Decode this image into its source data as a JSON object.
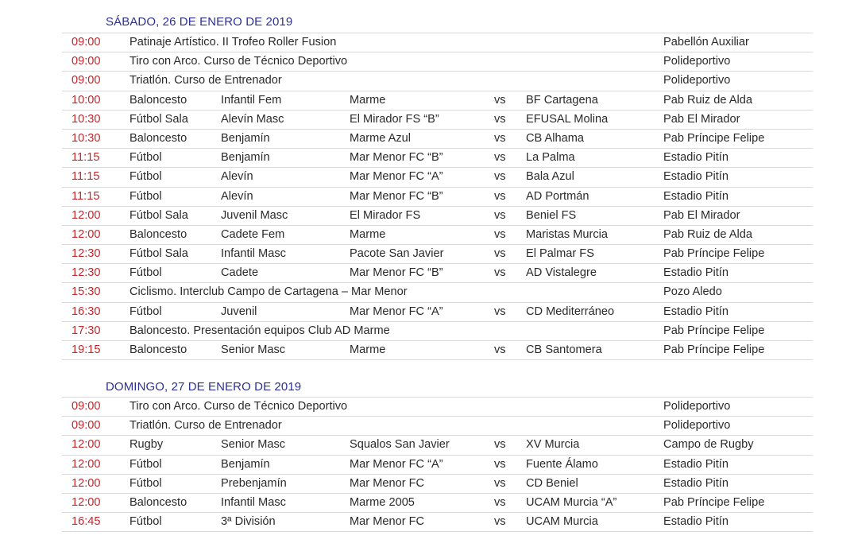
{
  "colors": {
    "title": "#2e3192",
    "time": "#c0282d"
  },
  "days": [
    {
      "title": "SÁBADO, 26 DE ENERO DE 2019",
      "events": [
        {
          "time": "09:00",
          "desc": "Patinaje Artístico. II Trofeo Roller Fusion",
          "venue": "Pabellón Auxiliar"
        },
        {
          "time": "09:00",
          "desc": "Tiro con Arco. Curso de Técnico Deportivo",
          "venue": "Polideportivo"
        },
        {
          "time": "09:00",
          "desc": "Triatlón. Curso de Entrenador",
          "venue": "Polideportivo"
        },
        {
          "time": "10:00",
          "sport": "Baloncesto",
          "category": "Infantil Fem",
          "team": "Marme",
          "vs": "vs",
          "opponent": "BF Cartagena",
          "venue": "Pab Ruiz de Alda"
        },
        {
          "time": "10:30",
          "sport": "Fútbol Sala",
          "category": "Alevín Masc",
          "team": "El Mirador FS “B”",
          "vs": "vs",
          "opponent": "EFUSAL Molina",
          "venue": "Pab El Mirador"
        },
        {
          "time": "10:30",
          "sport": "Baloncesto",
          "category": "Benjamín",
          "team": "Marme Azul",
          "vs": "vs",
          "opponent": "CB Alhama",
          "venue": "Pab Príncipe Felipe"
        },
        {
          "time": "11:15",
          "sport": "Fútbol",
          "category": "Benjamín",
          "team": "Mar Menor FC “B”",
          "vs": "vs",
          "opponent": "La Palma",
          "venue": "Estadio Pitín"
        },
        {
          "time": "11:15",
          "sport": "Fútbol",
          "category": "Alevín",
          "team": "Mar Menor FC “A”",
          "vs": "vs",
          "opponent": "Bala Azul",
          "venue": "Estadio Pitín"
        },
        {
          "time": "11:15",
          "sport": "Fútbol",
          "category": "Alevín",
          "team": "Mar Menor FC “B”",
          "vs": "vs",
          "opponent": "AD Portmán",
          "venue": "Estadio Pitín"
        },
        {
          "time": "12:00",
          "sport": "Fútbol Sala",
          "category": "Juvenil Masc",
          "team": "El Mirador FS",
          "vs": "vs",
          "opponent": "Beniel FS",
          "venue": "Pab El Mirador"
        },
        {
          "time": "12:00",
          "sport": "Baloncesto",
          "category": "Cadete Fem",
          "team": "Marme",
          "vs": "vs",
          "opponent": "Maristas Murcia",
          "venue": "Pab Ruiz de Alda"
        },
        {
          "time": "12:30",
          "sport": "Fútbol Sala",
          "category": "Infantil Masc",
          "team": "Pacote San Javier",
          "vs": "vs",
          "opponent": "El Palmar FS",
          "venue": "Pab Príncipe Felipe"
        },
        {
          "time": "12:30",
          "sport": "Fútbol",
          "category": "Cadete",
          "team": "Mar Menor FC “B”",
          "vs": "vs",
          "opponent": "AD Vistalegre",
          "venue": "Estadio Pitín"
        },
        {
          "time": "15:30",
          "desc": "Ciclismo. Interclub Campo de Cartagena – Mar Menor",
          "venue": "Pozo Aledo"
        },
        {
          "time": "16:30",
          "sport": "Fútbol",
          "category": "Juvenil",
          "team": "Mar Menor FC “A”",
          "vs": "vs",
          "opponent": "CD Mediterráneo",
          "venue": "Estadio Pitín"
        },
        {
          "time": "17:30",
          "desc": "Baloncesto. Presentación equipos Club AD Marme",
          "venue": "Pab Príncipe Felipe"
        },
        {
          "time": "19:15",
          "sport": "Baloncesto",
          "category": "Senior Masc",
          "team": "Marme",
          "vs": "vs",
          "opponent": "CB Santomera",
          "venue": "Pab Príncipe Felipe"
        }
      ]
    },
    {
      "title": "DOMINGO, 27 DE ENERO DE 2019",
      "events": [
        {
          "time": "09:00",
          "desc": "Tiro con Arco. Curso de Técnico Deportivo",
          "venue": "Polideportivo"
        },
        {
          "time": "09:00",
          "desc": "Triatlón. Curso de Entrenador",
          "venue": "Polideportivo"
        },
        {
          "time": "12:00",
          "sport": "Rugby",
          "category": "Senior Masc",
          "team": "Squalos San Javier",
          "vs": "vs",
          "opponent": "XV Murcia",
          "venue": "Campo de Rugby"
        },
        {
          "time": "12:00",
          "sport": "Fútbol",
          "category": "Benjamín",
          "team": "Mar Menor FC “A”",
          "vs": "vs",
          "opponent": "Fuente Álamo",
          "venue": "Estadio Pitín"
        },
        {
          "time": "12:00",
          "sport": "Fútbol",
          "category": "Prebenjamín",
          "team": "Mar Menor FC",
          "vs": "vs",
          "opponent": "CD Beniel",
          "venue": "Estadio Pitín"
        },
        {
          "time": "12:00",
          "sport": "Baloncesto",
          "category": "Infantil Masc",
          "team": "Marme 2005",
          "vs": "vs",
          "opponent": "UCAM Murcia “A”",
          "venue": "Pab Príncipe Felipe"
        },
        {
          "time": "16:45",
          "sport": "Fútbol",
          "category": "3ª División",
          "team": "Mar Menor FC",
          "vs": "vs",
          "opponent": "UCAM Murcia",
          "venue": "Estadio Pitín"
        }
      ]
    }
  ]
}
